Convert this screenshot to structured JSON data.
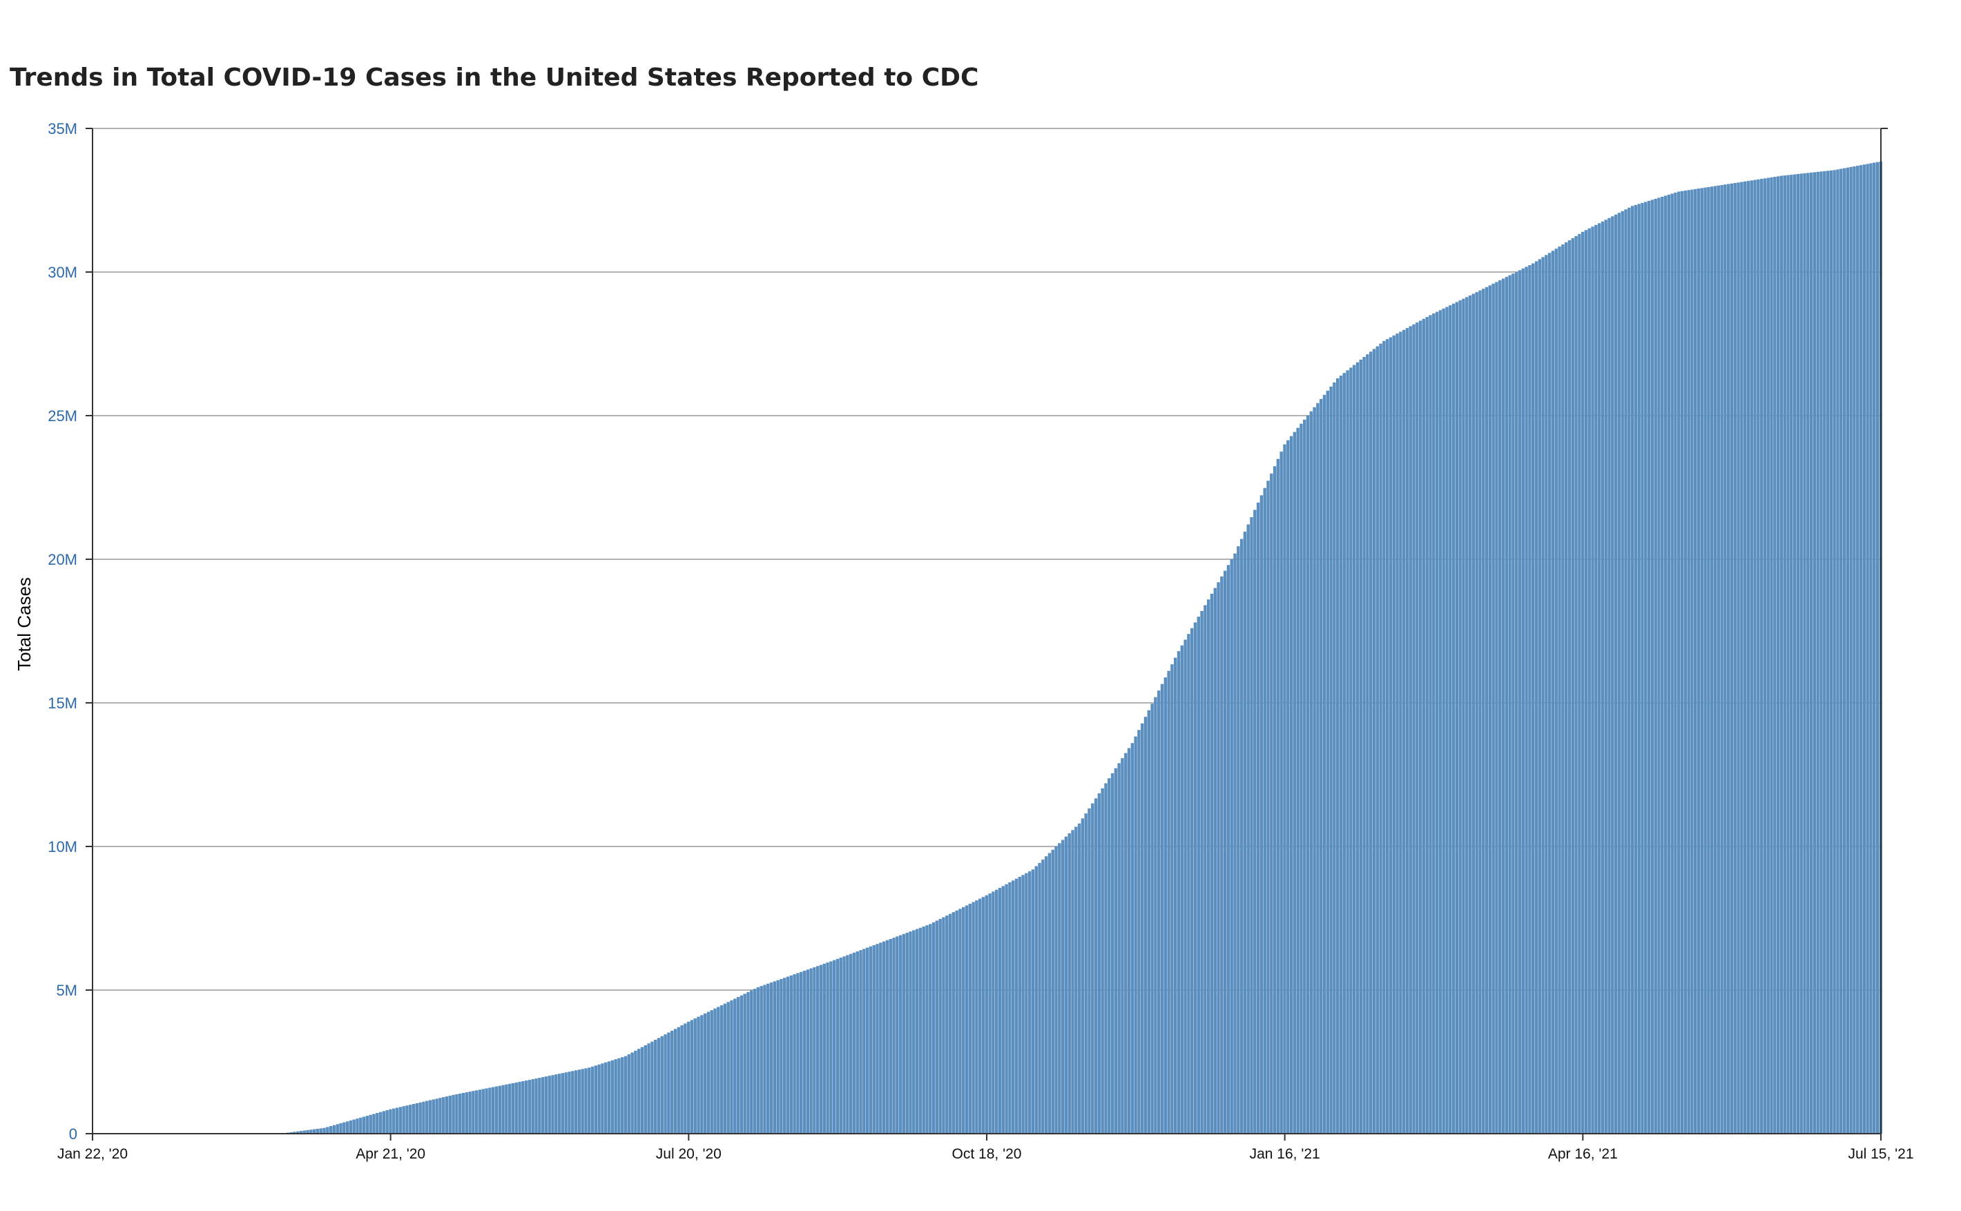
{
  "chart_data": {
    "type": "bar",
    "title": "Trends in Total COVID-19 Cases in the United States Reported to CDC",
    "ylabel": "Total Cases",
    "xlabel": "",
    "x_start": "2020-01-22",
    "x_end": "2021-07-15",
    "ylim": [
      0,
      35000000
    ],
    "yticks": [
      {
        "value": 0,
        "label": "0"
      },
      {
        "value": 5000000,
        "label": "5M"
      },
      {
        "value": 10000000,
        "label": "10M"
      },
      {
        "value": 15000000,
        "label": "15M"
      },
      {
        "value": 20000000,
        "label": "20M"
      },
      {
        "value": 25000000,
        "label": "25M"
      },
      {
        "value": 30000000,
        "label": "30M"
      },
      {
        "value": 35000000,
        "label": "35M"
      }
    ],
    "xticks": [
      {
        "date": "2020-01-22",
        "label": "Jan 22, '20"
      },
      {
        "date": "2020-04-21",
        "label": "Apr 21, '20"
      },
      {
        "date": "2020-07-20",
        "label": "Jul 20, '20"
      },
      {
        "date": "2020-10-18",
        "label": "Oct 18, '20"
      },
      {
        "date": "2021-01-16",
        "label": "Jan 16, '21"
      },
      {
        "date": "2021-04-16",
        "label": "Apr 16, '21"
      },
      {
        "date": "2021-07-15",
        "label": "Jul 15, '21"
      }
    ],
    "grid": true,
    "bar_color": "#5b8fbf",
    "series": [
      {
        "x": [
          "2020-01-22",
          "2020-03-10",
          "2020-03-20",
          "2020-04-01",
          "2020-04-21",
          "2020-05-10",
          "2020-06-01",
          "2020-06-20",
          "2020-07-01",
          "2020-07-20",
          "2020-08-10",
          "2020-09-01",
          "2020-10-01",
          "2020-10-18",
          "2020-11-01",
          "2020-11-15",
          "2020-12-01",
          "2020-12-15",
          "2021-01-01",
          "2021-01-16",
          "2021-02-01",
          "2021-02-15",
          "2021-03-01",
          "2021-03-15",
          "2021-04-01",
          "2021-04-16",
          "2021-05-01",
          "2021-05-15",
          "2021-06-01",
          "2021-06-15",
          "2021-07-01",
          "2021-07-15"
        ],
        "values": [
          0,
          10000,
          20000,
          200000,
          850000,
          1350000,
          1850000,
          2300000,
          2700000,
          3900000,
          5100000,
          6000000,
          7300000,
          8300000,
          9200000,
          10800000,
          13600000,
          16800000,
          20200000,
          24000000,
          26300000,
          27600000,
          28500000,
          29300000,
          30300000,
          31400000,
          32300000,
          32800000,
          33100000,
          33350000,
          33550000,
          33850000
        ]
      }
    ]
  }
}
